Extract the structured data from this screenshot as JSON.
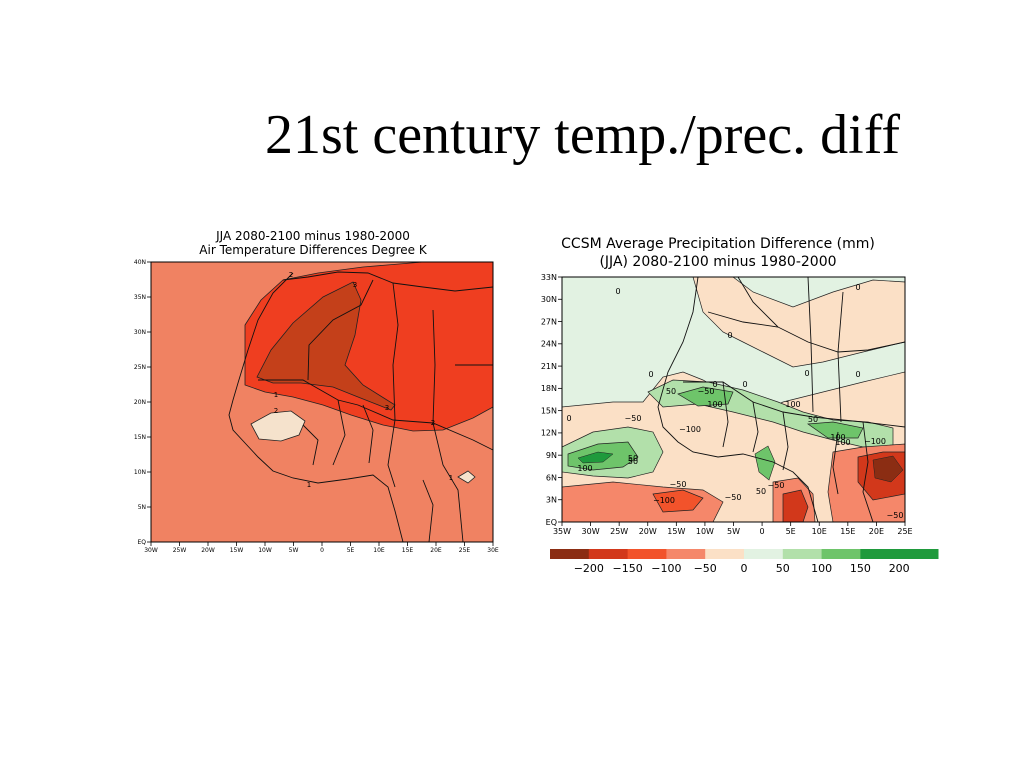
{
  "slide": {
    "title": "21st century temp./prec. diff"
  },
  "chart_data": [
    {
      "type": "heatmap",
      "title": "JJA 2080-2100 minus 1980-2000",
      "subtitle": "Air Temperature Differences Degree K",
      "x_ticks": [
        "30W",
        "25W",
        "20W",
        "15W",
        "10W",
        "5W",
        "0",
        "5E",
        "10E",
        "15E",
        "20E",
        "25E",
        "30E"
      ],
      "y_ticks": [
        "EQ",
        "5N",
        "10N",
        "15N",
        "20N",
        "25N",
        "30N",
        "35N",
        "40N"
      ],
      "xlim": [
        -30,
        30
      ],
      "ylim": [
        0,
        40
      ],
      "contour_levels": [
        1,
        2,
        3
      ],
      "contour_labels": [
        "2",
        "3",
        "2",
        "1",
        "3",
        "2",
        "1",
        "1"
      ],
      "fill_colors": {
        "below_1": "#f5e2cc",
        "1_to_2": "#f08262",
        "2_to_3": "#ef3e20",
        "above_3": "#c4401a"
      }
    },
    {
      "type": "heatmap",
      "title": "CCSM Average Precipitation Difference (mm)",
      "subtitle": "(JJA) 2080-2100 minus 1980-2000",
      "x_ticks": [
        "35W",
        "30W",
        "25W",
        "20W",
        "15W",
        "10W",
        "5W",
        "0",
        "5E",
        "10E",
        "15E",
        "20E",
        "25E"
      ],
      "y_ticks": [
        "EQ",
        "3N",
        "6N",
        "9N",
        "12N",
        "15N",
        "18N",
        "21N",
        "24N",
        "27N",
        "30N",
        "33N"
      ],
      "xlim": [
        -35,
        25
      ],
      "ylim": [
        0,
        34
      ],
      "contour_labels": [
        "0",
        "0",
        "0",
        "0",
        "0",
        "0",
        "0",
        "0",
        "0",
        "-50",
        "50",
        "-50",
        "50",
        "100",
        "100",
        "100",
        "50",
        "100",
        "-100",
        "100",
        "50",
        "-50",
        "-100",
        "-50",
        "50",
        "-50",
        "-100",
        "-50"
      ],
      "colorbar": {
        "ticks": [
          "−200",
          "−150",
          "−100",
          "−50",
          "0",
          "50",
          "100",
          "150",
          "200"
        ],
        "colors": [
          "#8b2d13",
          "#d2381b",
          "#f2532b",
          "#f5876a",
          "#fbe0c6",
          "#e2f2e2",
          "#b2e0aa",
          "#6ec46a",
          "#1f9a3c"
        ]
      }
    }
  ]
}
